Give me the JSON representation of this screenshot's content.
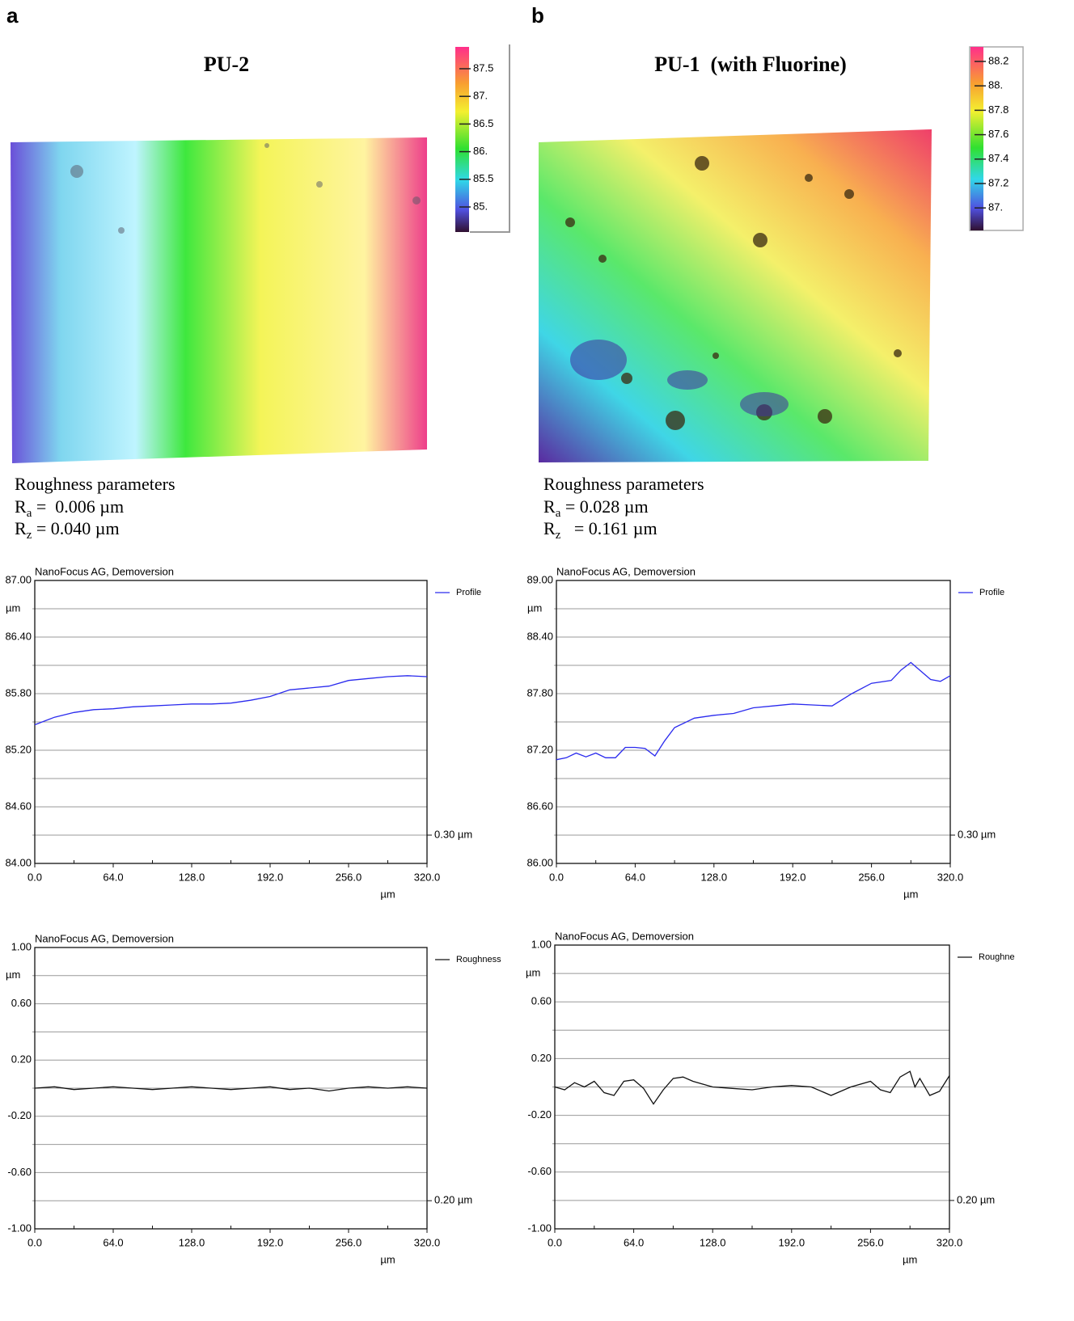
{
  "panels": [
    {
      "label": "a",
      "title": "PU-2",
      "colorbar_ticks": [
        "87.5",
        "87.",
        "86.5",
        "86.",
        "85.5",
        "85."
      ],
      "roughness_title": "Roughness parameters",
      "ra": {
        "symbol": "R",
        "subscript": "a",
        "text": " =  0.006 µm"
      },
      "rz": {
        "symbol": "R",
        "subscript": "z",
        "text": " = 0.040 µm"
      }
    },
    {
      "label": "b",
      "title": "PU-1  (with Fluorine)",
      "colorbar_ticks": [
        "88.2",
        "88.",
        "87.8",
        "87.6",
        "87.4",
        "87.2",
        "87."
      ],
      "roughness_title": "Roughness parameters",
      "ra": {
        "symbol": "R",
        "subscript": "a",
        "text": " = 0.028 µm"
      },
      "rz": {
        "symbol": "R",
        "subscript": "z",
        "text": "   = 0.161 µm"
      }
    }
  ],
  "chart_data": [
    {
      "type": "line",
      "title": "NanoFocus AG, Demoversion",
      "y_label": "µm",
      "x_label": "µm",
      "annotation": "0.30 µm",
      "x": [
        0,
        16,
        32,
        48,
        64,
        80,
        96,
        112,
        128,
        144,
        160,
        176,
        192,
        208,
        224,
        240,
        256,
        272,
        288,
        304,
        320
      ],
      "series": [
        {
          "name": "Profile",
          "color": "#2a2aee",
          "values": [
            85.47,
            85.55,
            85.6,
            85.63,
            85.64,
            85.66,
            85.67,
            85.68,
            85.69,
            85.69,
            85.7,
            85.73,
            85.77,
            85.84,
            85.86,
            85.88,
            85.94,
            85.96,
            85.98,
            85.99,
            85.98
          ]
        }
      ],
      "xlim": [
        0,
        320
      ],
      "xticks": [
        {
          "value": 0,
          "label": "0.0"
        },
        {
          "value": 64,
          "label": "64.0"
        },
        {
          "value": 128,
          "label": "128.0"
        },
        {
          "value": 192,
          "label": "192.0"
        },
        {
          "value": 256,
          "label": "256.0"
        },
        {
          "value": 320,
          "label": "320.0"
        }
      ],
      "minor_xticks": [
        32,
        96,
        160,
        224,
        288
      ],
      "ylim": [
        84,
        87
      ],
      "yticks": [
        {
          "value": 84,
          "label": "84.00"
        },
        {
          "value": 84.6,
          "label": "84.60"
        },
        {
          "value": 85.2,
          "label": "85.20"
        },
        {
          "value": 85.8,
          "label": "85.80"
        },
        {
          "value": 86.4,
          "label": "86.40"
        },
        {
          "value": 87,
          "label": "87.00"
        }
      ],
      "minor_yticks": [
        84.3,
        84.9,
        85.5,
        86.1,
        86.7
      ],
      "grid": true
    },
    {
      "type": "line",
      "title": "NanoFocus AG, Demoversion",
      "y_label": "µm",
      "x_label": "µm",
      "annotation": "0.30 µm",
      "x": [
        0,
        8,
        16,
        24,
        32,
        40,
        48,
        56,
        64,
        72,
        80,
        88,
        96,
        112,
        128,
        144,
        160,
        176,
        192,
        208,
        224,
        240,
        256,
        272,
        280,
        288,
        296,
        304,
        312,
        320
      ],
      "series": [
        {
          "name": "Profile",
          "color": "#2a2aee",
          "values": [
            87.1,
            87.12,
            87.17,
            87.13,
            87.17,
            87.12,
            87.12,
            87.23,
            87.23,
            87.22,
            87.14,
            87.3,
            87.44,
            87.54,
            87.57,
            87.59,
            87.65,
            87.67,
            87.69,
            87.68,
            87.67,
            87.8,
            87.91,
            87.94,
            88.05,
            88.13,
            88.04,
            87.95,
            87.93,
            87.99
          ]
        }
      ],
      "xlim": [
        0,
        320
      ],
      "xticks": [
        {
          "value": 0,
          "label": "0.0"
        },
        {
          "value": 64,
          "label": "64.0"
        },
        {
          "value": 128,
          "label": "128.0"
        },
        {
          "value": 192,
          "label": "192.0"
        },
        {
          "value": 256,
          "label": "256.0"
        },
        {
          "value": 320,
          "label": "320.0"
        }
      ],
      "minor_xticks": [
        32,
        96,
        160,
        224,
        288
      ],
      "ylim": [
        86,
        89
      ],
      "yticks": [
        {
          "value": 86,
          "label": "86.00"
        },
        {
          "value": 86.6,
          "label": "86.60"
        },
        {
          "value": 87.2,
          "label": "87.20"
        },
        {
          "value": 87.8,
          "label": "87.80"
        },
        {
          "value": 88.4,
          "label": "88.40"
        },
        {
          "value": 89,
          "label": "89.00"
        }
      ],
      "minor_yticks": [
        86.3,
        86.9,
        87.5,
        88.1,
        88.7
      ],
      "grid": true
    },
    {
      "type": "line",
      "title": "NanoFocus AG, Demoversion",
      "y_label": "µm",
      "x_label": "µm",
      "annotation": "0.20 µm",
      "x": [
        0,
        16,
        32,
        48,
        64,
        80,
        96,
        112,
        128,
        144,
        160,
        176,
        192,
        208,
        224,
        240,
        256,
        272,
        288,
        304,
        320
      ],
      "series": [
        {
          "name": "Roughness",
          "color": "#111111",
          "values": [
            0.0,
            0.01,
            -0.01,
            0.0,
            0.01,
            0.0,
            -0.01,
            0.0,
            0.01,
            0.0,
            -0.01,
            0.0,
            0.01,
            -0.01,
            0.0,
            -0.02,
            0.0,
            0.01,
            0.0,
            0.01,
            0.0
          ]
        }
      ],
      "xlim": [
        0,
        320
      ],
      "xticks": [
        {
          "value": 0,
          "label": "0.0"
        },
        {
          "value": 64,
          "label": "64.0"
        },
        {
          "value": 128,
          "label": "128.0"
        },
        {
          "value": 192,
          "label": "192.0"
        },
        {
          "value": 256,
          "label": "256.0"
        },
        {
          "value": 320,
          "label": "320.0"
        }
      ],
      "minor_xticks": [
        32,
        96,
        160,
        224,
        288
      ],
      "ylim": [
        -1,
        1
      ],
      "yticks": [
        {
          "value": -1,
          "label": "-1.00"
        },
        {
          "value": -0.6,
          "label": "-0.60"
        },
        {
          "value": -0.2,
          "label": "-0.20"
        },
        {
          "value": 0.2,
          "label": "0.20"
        },
        {
          "value": 0.6,
          "label": "0.60"
        },
        {
          "value": 1,
          "label": "1.00"
        }
      ],
      "minor_yticks": [
        -0.8,
        -0.4,
        0,
        0.4,
        0.8
      ],
      "grid": true
    },
    {
      "type": "line",
      "title": "NanoFocus AG, Demoversion",
      "y_label": "µm",
      "x_label": "µm",
      "annotation": "0.20 µm",
      "x": [
        0,
        8,
        16,
        24,
        32,
        40,
        48,
        56,
        64,
        72,
        80,
        88,
        96,
        104,
        112,
        128,
        144,
        160,
        176,
        192,
        208,
        224,
        240,
        256,
        264,
        272,
        280,
        288,
        292,
        296,
        304,
        312,
        320
      ],
      "series": [
        {
          "name": "Roughne",
          "color": "#111111",
          "values": [
            0.0,
            -0.02,
            0.03,
            0.0,
            0.04,
            -0.04,
            -0.06,
            0.04,
            0.05,
            -0.01,
            -0.12,
            -0.02,
            0.06,
            0.07,
            0.04,
            0.0,
            -0.01,
            -0.02,
            0.0,
            0.01,
            0.0,
            -0.06,
            0.0,
            0.04,
            -0.02,
            -0.04,
            0.07,
            0.11,
            0.0,
            0.06,
            -0.06,
            -0.03,
            0.08
          ]
        }
      ],
      "xlim": [
        0,
        320
      ],
      "xticks": [
        {
          "value": 0,
          "label": "0.0"
        },
        {
          "value": 64,
          "label": "64.0"
        },
        {
          "value": 128,
          "label": "128.0"
        },
        {
          "value": 192,
          "label": "192.0"
        },
        {
          "value": 256,
          "label": "256.0"
        },
        {
          "value": 320,
          "label": "320.0"
        }
      ],
      "minor_xticks": [
        32,
        96,
        160,
        224,
        288
      ],
      "ylim": [
        -1,
        1
      ],
      "yticks": [
        {
          "value": -1,
          "label": "-1.00"
        },
        {
          "value": -0.6,
          "label": "-0.60"
        },
        {
          "value": -0.2,
          "label": "-0.20"
        },
        {
          "value": 0.2,
          "label": "0.20"
        },
        {
          "value": 0.6,
          "label": "0.60"
        },
        {
          "value": 1,
          "label": "1.00"
        }
      ],
      "minor_yticks": [
        -0.8,
        -0.4,
        0,
        0.4,
        0.8
      ],
      "grid": true
    }
  ]
}
